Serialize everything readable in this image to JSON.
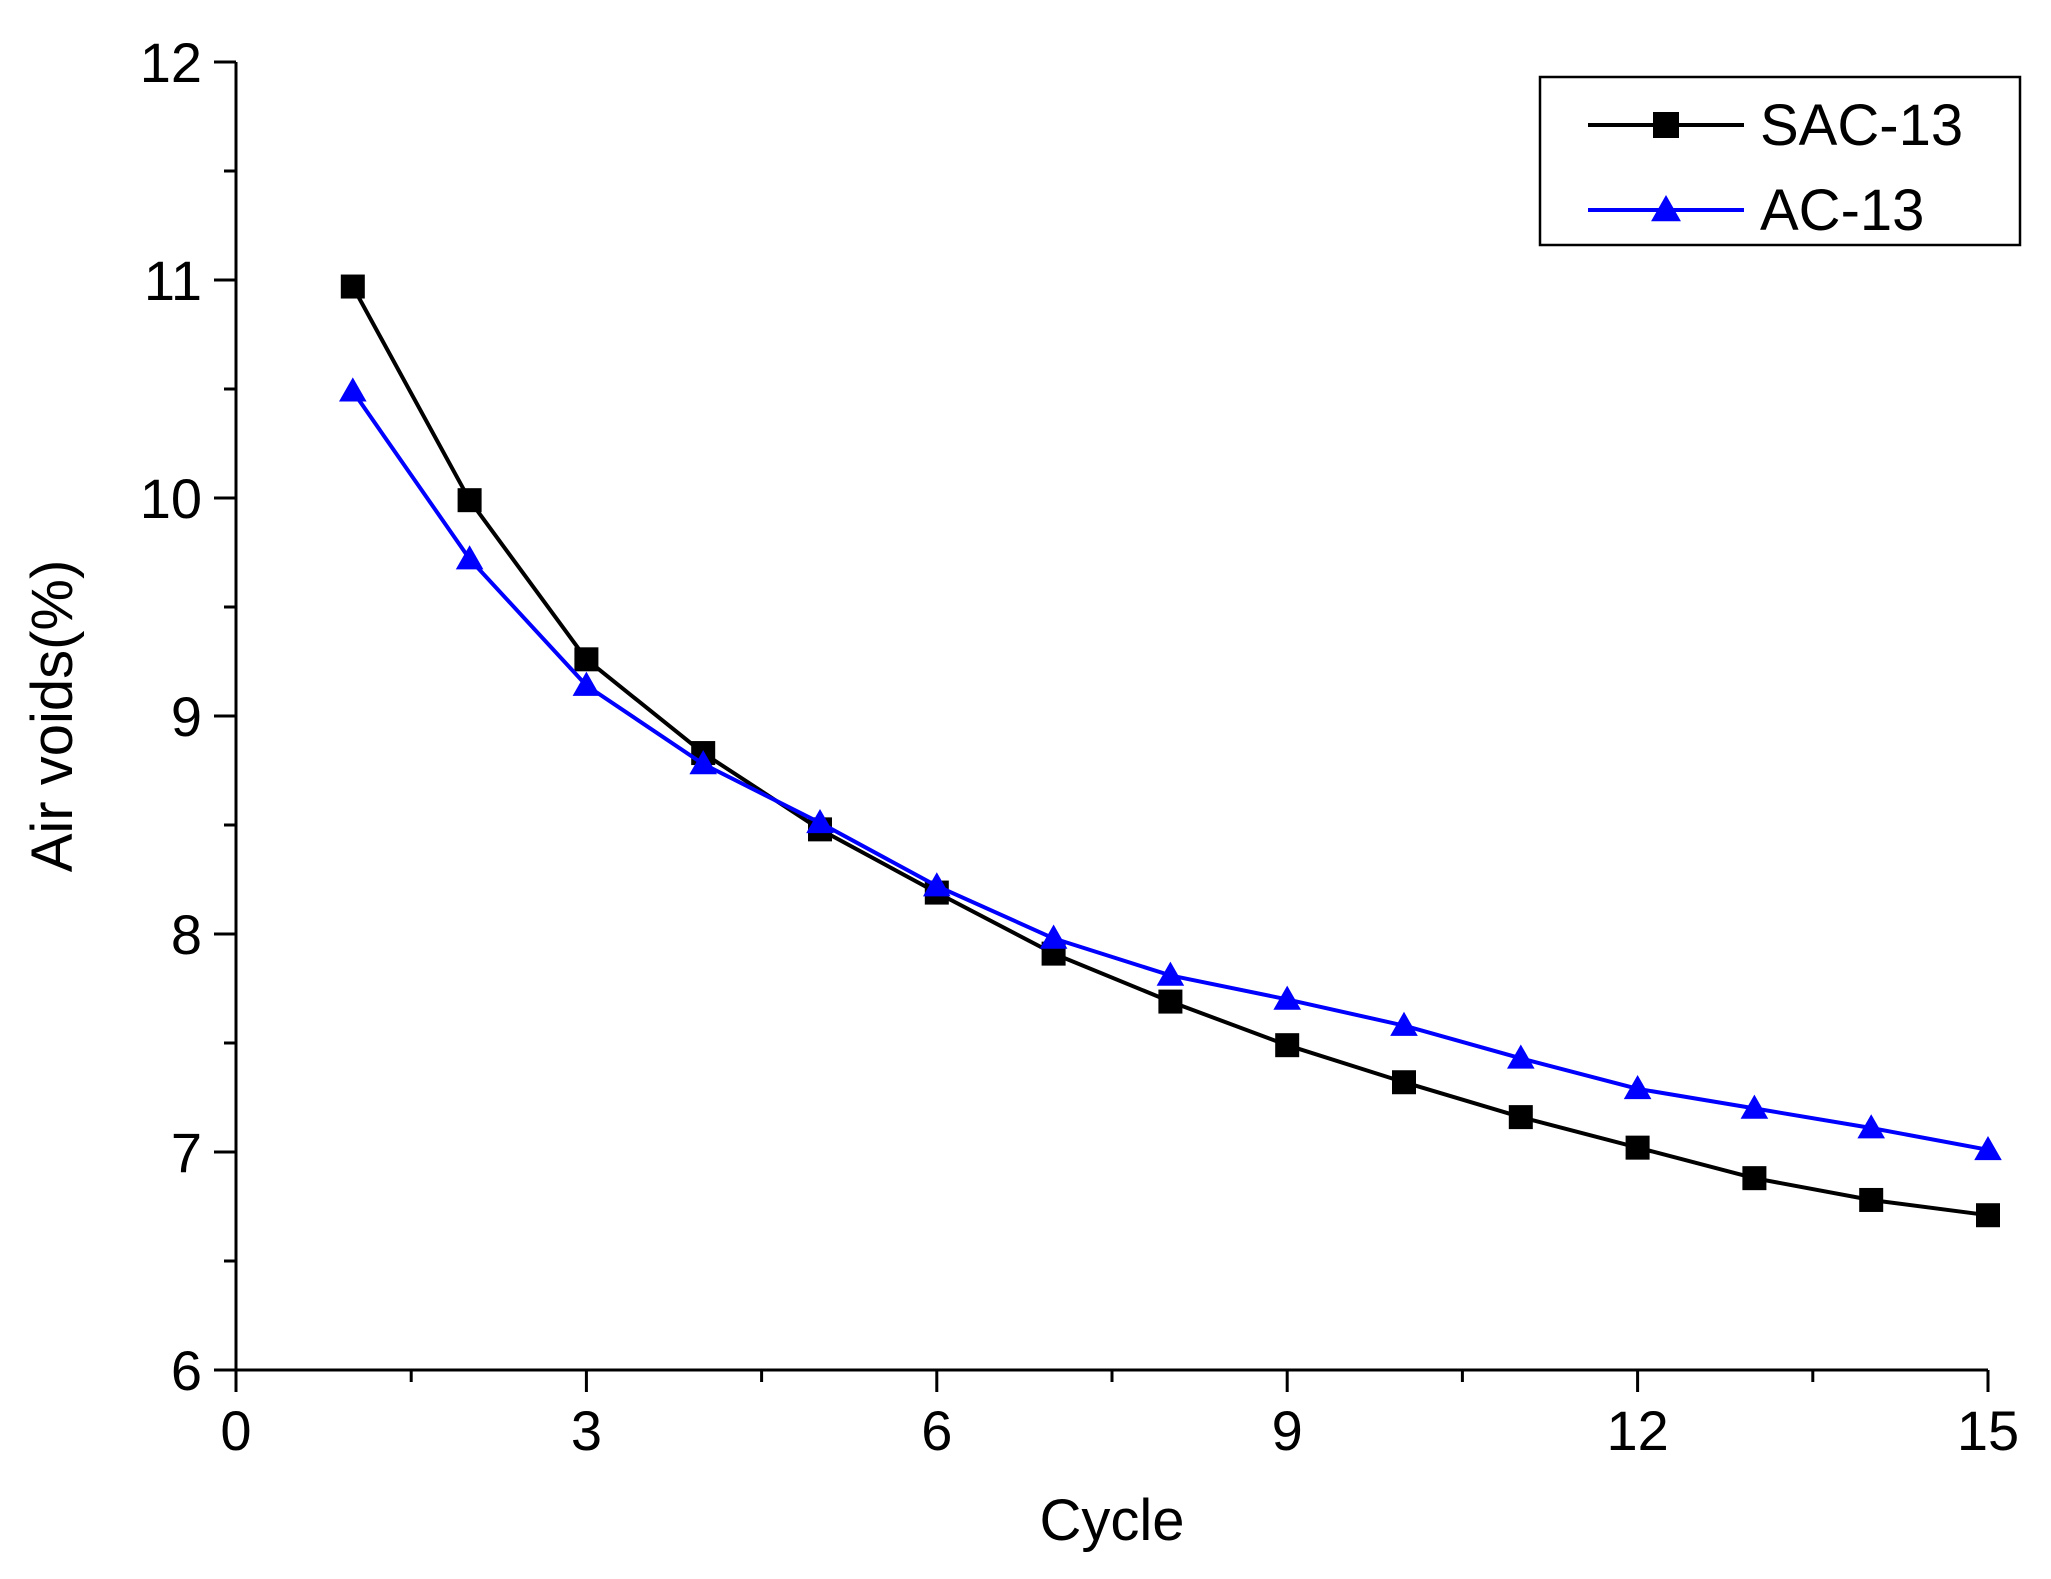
{
  "chart_data": {
    "type": "line",
    "title": "",
    "xlabel": "Cycle",
    "ylabel": "Air voids(%)",
    "xlim": [
      0,
      15
    ],
    "ylim": [
      6,
      12
    ],
    "xticks": [
      0,
      3,
      6,
      9,
      12,
      15
    ],
    "yticks": [
      6,
      7,
      8,
      9,
      10,
      11,
      12
    ],
    "legend_position": "top-right",
    "grid": false,
    "series": [
      {
        "name": "SAC-13",
        "color": "#000000",
        "marker": "square",
        "x": [
          1,
          2,
          3,
          4,
          5,
          6,
          7,
          8,
          9,
          10,
          11,
          12,
          13,
          14,
          15
        ],
        "y": [
          10.97,
          9.99,
          9.26,
          8.83,
          8.48,
          8.19,
          7.91,
          7.69,
          7.49,
          7.32,
          7.16,
          7.02,
          6.88,
          6.78,
          6.71
        ]
      },
      {
        "name": "AC-13",
        "color": "#0000ff",
        "marker": "triangle",
        "x": [
          1,
          2,
          3,
          4,
          5,
          6,
          7,
          8,
          9,
          10,
          11,
          12,
          13,
          14,
          15
        ],
        "y": [
          10.49,
          9.72,
          9.14,
          8.78,
          8.51,
          8.22,
          7.98,
          7.81,
          7.7,
          7.58,
          7.43,
          7.29,
          7.2,
          7.11,
          7.01
        ]
      }
    ]
  }
}
